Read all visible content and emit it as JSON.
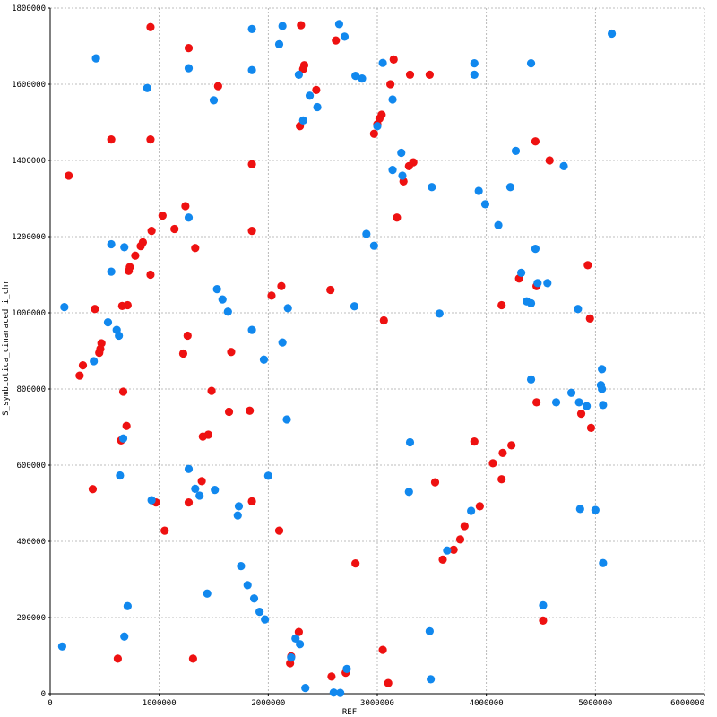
{
  "chart_data": {
    "type": "scatter",
    "title": "",
    "xlabel": "REF",
    "ylabel": "S_symbiotica_cinaracedri_chr",
    "xlim": [
      0,
      6000000
    ],
    "ylim": [
      0,
      1800000
    ],
    "xticks": [
      0,
      1000000,
      2000000,
      3000000,
      4000000,
      5000000,
      6000000
    ],
    "yticks": [
      0,
      200000,
      400000,
      600000,
      800000,
      1000000,
      1200000,
      1400000,
      1600000,
      1800000
    ],
    "xtick_labels": [
      "0",
      "1000000",
      "2000000",
      "3000000",
      "4000000",
      "5000000",
      "6000000"
    ],
    "ytick_labels": [
      "0",
      "200000",
      "400000",
      "600000",
      "800000",
      "1000000",
      "1200000",
      "1400000",
      "1600000",
      "1800000"
    ],
    "grid": true,
    "legend": "none",
    "series": [
      {
        "color": "#ee1111",
        "points": [
          [
            920000,
            1750000
          ],
          [
            1270000,
            1695000
          ],
          [
            1540000,
            1595000
          ],
          [
            2300000,
            1755000
          ],
          [
            2620000,
            1715000
          ],
          [
            3150000,
            1665000
          ],
          [
            3300000,
            1625000
          ],
          [
            3480000,
            1625000
          ],
          [
            2330000,
            1650000
          ],
          [
            2320000,
            1640000
          ],
          [
            2440000,
            1585000
          ],
          [
            2290000,
            1490000
          ],
          [
            3120000,
            1600000
          ],
          [
            3040000,
            1520000
          ],
          [
            3020000,
            1510000
          ],
          [
            3000000,
            1495000
          ],
          [
            2970000,
            1470000
          ],
          [
            560000,
            1455000
          ],
          [
            920000,
            1455000
          ],
          [
            4450000,
            1450000
          ],
          [
            4580000,
            1400000
          ],
          [
            3330000,
            1395000
          ],
          [
            3290000,
            1385000
          ],
          [
            3240000,
            1345000
          ],
          [
            170000,
            1360000
          ],
          [
            1850000,
            1390000
          ],
          [
            1240000,
            1280000
          ],
          [
            1030000,
            1255000
          ],
          [
            3180000,
            1250000
          ],
          [
            1140000,
            1220000
          ],
          [
            930000,
            1215000
          ],
          [
            1850000,
            1215000
          ],
          [
            850000,
            1185000
          ],
          [
            830000,
            1175000
          ],
          [
            780000,
            1150000
          ],
          [
            1330000,
            1170000
          ],
          [
            730000,
            1120000
          ],
          [
            720000,
            1110000
          ],
          [
            920000,
            1100000
          ],
          [
            4300000,
            1090000
          ],
          [
            4460000,
            1070000
          ],
          [
            4930000,
            1125000
          ],
          [
            2120000,
            1070000
          ],
          [
            2030000,
            1045000
          ],
          [
            2570000,
            1060000
          ],
          [
            4140000,
            1020000
          ],
          [
            710000,
            1020000
          ],
          [
            660000,
            1018000
          ],
          [
            410000,
            1010000
          ],
          [
            3060000,
            980000
          ],
          [
            4950000,
            985000
          ],
          [
            1260000,
            940000
          ],
          [
            470000,
            920000
          ],
          [
            460000,
            905000
          ],
          [
            450000,
            895000
          ],
          [
            1220000,
            893000
          ],
          [
            1660000,
            897000
          ],
          [
            300000,
            862000
          ],
          [
            270000,
            835000
          ],
          [
            1480000,
            795000
          ],
          [
            670000,
            793000
          ],
          [
            4460000,
            765000
          ],
          [
            1640000,
            740000
          ],
          [
            1830000,
            743000
          ],
          [
            4870000,
            735000
          ],
          [
            4960000,
            698000
          ],
          [
            700000,
            703000
          ],
          [
            1450000,
            680000
          ],
          [
            1400000,
            675000
          ],
          [
            650000,
            665000
          ],
          [
            3890000,
            662000
          ],
          [
            4230000,
            652000
          ],
          [
            4150000,
            632000
          ],
          [
            4060000,
            605000
          ],
          [
            1390000,
            558000
          ],
          [
            4140000,
            563000
          ],
          [
            3530000,
            555000
          ],
          [
            390000,
            537000
          ],
          [
            970000,
            502000
          ],
          [
            1270000,
            502000
          ],
          [
            1850000,
            505000
          ],
          [
            3940000,
            492000
          ],
          [
            3800000,
            440000
          ],
          [
            3760000,
            405000
          ],
          [
            3700000,
            378000
          ],
          [
            3600000,
            352000
          ],
          [
            1050000,
            428000
          ],
          [
            2100000,
            428000
          ],
          [
            2800000,
            342000
          ],
          [
            4520000,
            192000
          ],
          [
            2280000,
            162000
          ],
          [
            2210000,
            98000
          ],
          [
            2200000,
            80000
          ],
          [
            3050000,
            115000
          ],
          [
            620000,
            92000
          ],
          [
            1310000,
            92000
          ],
          [
            2580000,
            45000
          ],
          [
            2710000,
            55000
          ],
          [
            3100000,
            28000
          ]
        ]
      },
      {
        "color": "#1188ee",
        "points": [
          [
            420000,
            1668000
          ],
          [
            1850000,
            1745000
          ],
          [
            2130000,
            1753000
          ],
          [
            2650000,
            1758000
          ],
          [
            2700000,
            1725000
          ],
          [
            5150000,
            1733000
          ],
          [
            2100000,
            1705000
          ],
          [
            1270000,
            1642000
          ],
          [
            1850000,
            1637000
          ],
          [
            2280000,
            1625000
          ],
          [
            3050000,
            1656000
          ],
          [
            3890000,
            1655000
          ],
          [
            4410000,
            1655000
          ],
          [
            2800000,
            1622000
          ],
          [
            2860000,
            1615000
          ],
          [
            3890000,
            1625000
          ],
          [
            890000,
            1590000
          ],
          [
            2380000,
            1570000
          ],
          [
            2450000,
            1540000
          ],
          [
            1500000,
            1558000
          ],
          [
            3140000,
            1560000
          ],
          [
            2320000,
            1505000
          ],
          [
            3000000,
            1490000
          ],
          [
            3220000,
            1420000
          ],
          [
            4270000,
            1425000
          ],
          [
            3140000,
            1375000
          ],
          [
            3230000,
            1360000
          ],
          [
            4710000,
            1385000
          ],
          [
            3500000,
            1330000
          ],
          [
            3930000,
            1320000
          ],
          [
            3990000,
            1285000
          ],
          [
            4220000,
            1330000
          ],
          [
            1270000,
            1250000
          ],
          [
            4110000,
            1230000
          ],
          [
            2900000,
            1207000
          ],
          [
            2970000,
            1176000
          ],
          [
            560000,
            1180000
          ],
          [
            680000,
            1172000
          ],
          [
            4450000,
            1168000
          ],
          [
            560000,
            1108000
          ],
          [
            4320000,
            1105000
          ],
          [
            4470000,
            1078000
          ],
          [
            4560000,
            1078000
          ],
          [
            1530000,
            1062000
          ],
          [
            1580000,
            1035000
          ],
          [
            4370000,
            1030000
          ],
          [
            4410000,
            1025000
          ],
          [
            130000,
            1015000
          ],
          [
            2180000,
            1012000
          ],
          [
            2790000,
            1017000
          ],
          [
            1630000,
            1003000
          ],
          [
            3570000,
            998000
          ],
          [
            4840000,
            1010000
          ],
          [
            530000,
            975000
          ],
          [
            610000,
            955000
          ],
          [
            630000,
            940000
          ],
          [
            1850000,
            955000
          ],
          [
            2130000,
            922000
          ],
          [
            1960000,
            877000
          ],
          [
            400000,
            873000
          ],
          [
            4410000,
            825000
          ],
          [
            5060000,
            852000
          ],
          [
            5050000,
            810000
          ],
          [
            5060000,
            800000
          ],
          [
            4780000,
            790000
          ],
          [
            4640000,
            765000
          ],
          [
            4850000,
            765000
          ],
          [
            4920000,
            755000
          ],
          [
            5070000,
            758000
          ],
          [
            2170000,
            720000
          ],
          [
            670000,
            670000
          ],
          [
            3300000,
            660000
          ],
          [
            1270000,
            590000
          ],
          [
            640000,
            573000
          ],
          [
            2000000,
            572000
          ],
          [
            1330000,
            538000
          ],
          [
            1370000,
            520000
          ],
          [
            1510000,
            535000
          ],
          [
            3290000,
            530000
          ],
          [
            930000,
            508000
          ],
          [
            1730000,
            492000
          ],
          [
            1720000,
            468000
          ],
          [
            3860000,
            480000
          ],
          [
            4860000,
            485000
          ],
          [
            5000000,
            482000
          ],
          [
            3640000,
            376000
          ],
          [
            5070000,
            343000
          ],
          [
            1750000,
            335000
          ],
          [
            1810000,
            285000
          ],
          [
            1870000,
            250000
          ],
          [
            1920000,
            215000
          ],
          [
            1970000,
            195000
          ],
          [
            1440000,
            263000
          ],
          [
            710000,
            230000
          ],
          [
            4520000,
            232000
          ],
          [
            3480000,
            164000
          ],
          [
            2250000,
            145000
          ],
          [
            2290000,
            130000
          ],
          [
            2210000,
            95000
          ],
          [
            110000,
            124000
          ],
          [
            680000,
            150000
          ],
          [
            2720000,
            65000
          ],
          [
            2340000,
            15000
          ],
          [
            2600000,
            3000
          ],
          [
            2660000,
            2000
          ],
          [
            3490000,
            38000
          ]
        ]
      }
    ]
  }
}
